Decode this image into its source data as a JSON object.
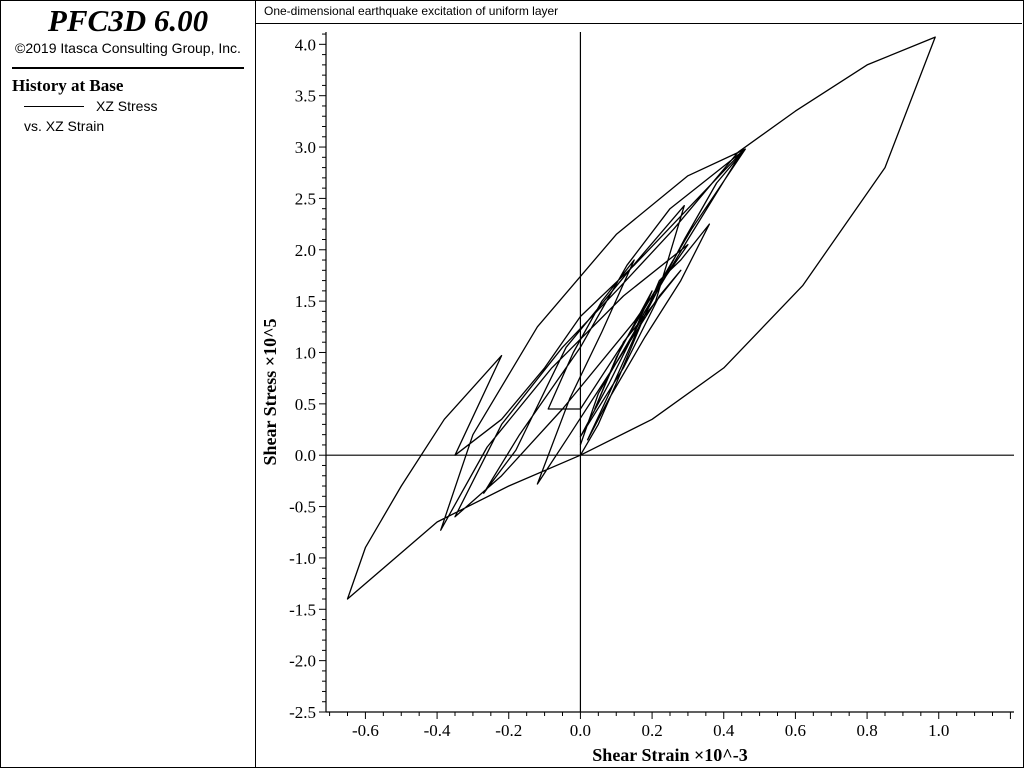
{
  "app": {
    "title": "PFC3D 6.00",
    "copyright": "©2019 Itasca Consulting Group, Inc."
  },
  "legend": {
    "history_title": "History at Base",
    "series_label": "XZ Stress",
    "vs_label": "vs. XZ Strain"
  },
  "caption": "One-dimensional earthquake excitation of uniform layer",
  "chart_data": {
    "type": "line",
    "xlabel": "Shear Strain ×10^-3",
    "ylabel": "Shear Stress ×10^5",
    "xlim": [
      -0.71,
      1.21
    ],
    "ylim": [
      -2.5,
      4.12
    ],
    "x_ticks": [
      -0.6,
      -0.4,
      -0.2,
      0.0,
      0.2,
      0.4,
      0.6,
      0.8,
      1.0
    ],
    "y_ticks": [
      -2.5,
      -2.0,
      -1.5,
      -1.0,
      -0.5,
      0.0,
      0.5,
      1.0,
      1.5,
      2.0,
      2.5,
      3.0,
      3.5,
      4.0
    ],
    "grid": false,
    "series": [
      {
        "points": [
          [
            0,
            0
          ],
          [
            0.05,
            0.3
          ],
          [
            0.1,
            0.7
          ],
          [
            0.16,
            1.2
          ],
          [
            0.22,
            1.7
          ],
          [
            0.28,
            1.9
          ],
          [
            0.36,
            2.25
          ],
          [
            0.28,
            1.7
          ],
          [
            0.18,
            1.15
          ],
          [
            0.08,
            0.55
          ],
          [
            0.02,
            0.15
          ],
          [
            0.08,
            0.6
          ],
          [
            0.17,
            1.3
          ],
          [
            0.29,
            2.1
          ],
          [
            0.38,
            2.65
          ],
          [
            0.46,
            2.98
          ],
          [
            0.31,
            2.2
          ],
          [
            0.14,
            1.2
          ],
          [
            0,
            0.45
          ],
          [
            -0.09,
            0.45
          ],
          [
            -0.02,
            1.0
          ],
          [
            0.06,
            1.5
          ],
          [
            0.15,
            1.9
          ],
          [
            0.06,
            1.2
          ],
          [
            -0.03,
            0.55
          ],
          [
            -0.12,
            -0.28
          ],
          [
            -0.03,
            0.2
          ],
          [
            0.1,
            0.9
          ],
          [
            0.21,
            1.5
          ],
          [
            0.29,
            2.43
          ],
          [
            0.16,
            1.9
          ],
          [
            -0.04,
            1.05
          ],
          [
            -0.18,
            0.05
          ],
          [
            -0.27,
            -0.37
          ],
          [
            -0.17,
            0.2
          ],
          [
            0.0,
            1.05
          ],
          [
            0.13,
            1.85
          ],
          [
            0.25,
            2.4
          ],
          [
            0.46,
            2.98
          ],
          [
            0.3,
            2.72
          ],
          [
            0.1,
            2.15
          ],
          [
            -0.12,
            1.25
          ],
          [
            -0.3,
            0.2
          ],
          [
            -0.39,
            -0.73
          ],
          [
            -0.26,
            0.08
          ],
          [
            -0.08,
            0.85
          ],
          [
            0.12,
            1.55
          ],
          [
            0.3,
            2.05
          ],
          [
            0.15,
            1.3
          ],
          [
            -0.05,
            0.45
          ],
          [
            -0.22,
            -0.2
          ],
          [
            -0.35,
            -0.6
          ],
          [
            -0.22,
            0.3
          ],
          [
            -0.05,
            1.05
          ],
          [
            0.1,
            1.6
          ],
          [
            0.26,
            2.2
          ],
          [
            0.44,
            2.95
          ],
          [
            0.6,
            3.35
          ],
          [
            0.8,
            3.8
          ],
          [
            0.99,
            4.07
          ],
          [
            0.85,
            2.8
          ],
          [
            0.62,
            1.65
          ],
          [
            0.4,
            0.85
          ],
          [
            0.2,
            0.35
          ],
          [
            0.0,
            0.0
          ],
          [
            -0.2,
            -0.3
          ],
          [
            -0.4,
            -0.65
          ],
          [
            -0.65,
            -1.4
          ],
          [
            -0.6,
            -0.9
          ],
          [
            -0.5,
            -0.3
          ],
          [
            -0.38,
            0.35
          ],
          [
            -0.22,
            0.97
          ],
          [
            -0.35,
            0.0
          ],
          [
            -0.22,
            0.35
          ],
          [
            -0.1,
            0.85
          ],
          [
            0.0,
            1.35
          ],
          [
            0.15,
            1.85
          ],
          [
            0.3,
            2.4
          ],
          [
            0.45,
            2.95
          ],
          [
            0.3,
            2.1
          ],
          [
            0.18,
            1.4
          ],
          [
            0.08,
            0.7
          ],
          [
            0.0,
            0.18
          ],
          [
            0.12,
            0.85
          ],
          [
            0.22,
            1.55
          ],
          [
            0.28,
            1.8
          ],
          [
            0.12,
            1.1
          ],
          [
            0.04,
            0.45
          ],
          [
            0.1,
            0.95
          ],
          [
            0.2,
            1.6
          ],
          [
            0.15,
            1.2
          ],
          [
            0.05,
            0.6
          ],
          [
            0.0,
            0.1
          ]
        ]
      }
    ]
  }
}
